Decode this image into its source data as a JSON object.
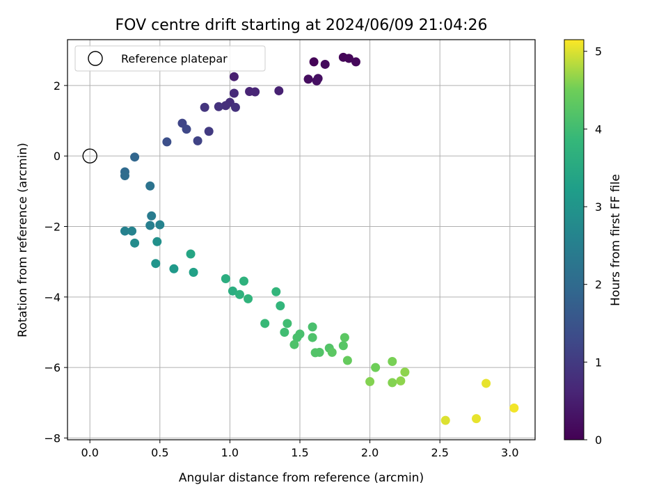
{
  "chart_data": {
    "type": "scatter",
    "title": "FOV centre drift starting at 2024/06/09 21:04:26",
    "xlabel": "Angular distance from reference (arcmin)",
    "ylabel": "Rotation from reference (arcmin)",
    "xlim": [
      -0.16,
      3.18
    ],
    "ylim": [
      -8.05,
      3.3
    ],
    "xticks": [
      "0.0",
      "0.5",
      "1.0",
      "1.5",
      "2.0",
      "2.5",
      "3.0"
    ],
    "xtick_values": [
      0,
      0.5,
      1,
      1.5,
      2,
      2.5,
      3
    ],
    "yticks": [
      "−8",
      "−6",
      "−4",
      "−2",
      "0",
      "2"
    ],
    "ytick_values": [
      -8,
      -6,
      -4,
      -2,
      0,
      2
    ],
    "grid": true,
    "legend_position": "top-left",
    "colormap": "viridis",
    "colorbar": {
      "label": "Hours from first FF file",
      "range": [
        0,
        5.15
      ],
      "ticks": [
        "0",
        "1",
        "2",
        "3",
        "4",
        "5"
      ],
      "tick_values": [
        0,
        1,
        2,
        3,
        4,
        5
      ]
    },
    "reference": {
      "name": "Reference platepar",
      "x": 0.0,
      "y": 0.0
    },
    "series": [
      {
        "name": "",
        "points": [
          {
            "x": 1.6,
            "y": 2.67,
            "h": 0.05
          },
          {
            "x": 1.81,
            "y": 2.8,
            "h": 0.08
          },
          {
            "x": 1.85,
            "y": 2.77,
            "h": 0.1
          },
          {
            "x": 1.9,
            "y": 2.67,
            "h": 0.12
          },
          {
            "x": 1.68,
            "y": 2.6,
            "h": 0.15
          },
          {
            "x": 1.56,
            "y": 2.18,
            "h": 0.2
          },
          {
            "x": 1.63,
            "y": 2.2,
            "h": 0.23
          },
          {
            "x": 1.62,
            "y": 2.13,
            "h": 0.25
          },
          {
            "x": 1.03,
            "y": 2.25,
            "h": 0.5
          },
          {
            "x": 1.35,
            "y": 1.85,
            "h": 0.55
          },
          {
            "x": 1.14,
            "y": 1.83,
            "h": 0.6
          },
          {
            "x": 1.18,
            "y": 1.82,
            "h": 0.62
          },
          {
            "x": 1.03,
            "y": 1.78,
            "h": 0.7
          },
          {
            "x": 1.0,
            "y": 1.52,
            "h": 0.75
          },
          {
            "x": 0.97,
            "y": 1.43,
            "h": 0.8
          },
          {
            "x": 0.92,
            "y": 1.4,
            "h": 0.85
          },
          {
            "x": 1.04,
            "y": 1.38,
            "h": 0.82
          },
          {
            "x": 0.82,
            "y": 1.38,
            "h": 0.9
          },
          {
            "x": 0.85,
            "y": 0.7,
            "h": 1.0
          },
          {
            "x": 0.66,
            "y": 0.93,
            "h": 1.2
          },
          {
            "x": 0.69,
            "y": 0.76,
            "h": 1.25
          },
          {
            "x": 0.77,
            "y": 0.43,
            "h": 1.15
          },
          {
            "x": 0.55,
            "y": 0.4,
            "h": 1.4
          },
          {
            "x": 0.32,
            "y": -0.03,
            "h": 1.9
          },
          {
            "x": 0.25,
            "y": -0.45,
            "h": 2.0
          },
          {
            "x": 0.25,
            "y": -0.56,
            "h": 2.05
          },
          {
            "x": 0.43,
            "y": -0.85,
            "h": 2.2
          },
          {
            "x": 0.44,
            "y": -1.7,
            "h": 2.4
          },
          {
            "x": 0.43,
            "y": -1.97,
            "h": 2.5
          },
          {
            "x": 0.5,
            "y": -1.95,
            "h": 2.6
          },
          {
            "x": 0.25,
            "y": -2.13,
            "h": 2.55
          },
          {
            "x": 0.3,
            "y": -2.13,
            "h": 2.6
          },
          {
            "x": 0.32,
            "y": -2.47,
            "h": 2.8
          },
          {
            "x": 0.48,
            "y": -2.43,
            "h": 2.9
          },
          {
            "x": 0.47,
            "y": -3.05,
            "h": 3.0
          },
          {
            "x": 0.6,
            "y": -3.2,
            "h": 3.1
          },
          {
            "x": 0.72,
            "y": -2.78,
            "h": 3.4
          },
          {
            "x": 0.74,
            "y": -3.3,
            "h": 3.3
          },
          {
            "x": 0.97,
            "y": -3.48,
            "h": 3.6
          },
          {
            "x": 1.1,
            "y": -3.55,
            "h": 3.7
          },
          {
            "x": 1.02,
            "y": -3.83,
            "h": 3.6
          },
          {
            "x": 1.07,
            "y": -3.93,
            "h": 3.7
          },
          {
            "x": 1.13,
            "y": -4.05,
            "h": 3.75
          },
          {
            "x": 1.33,
            "y": -3.85,
            "h": 3.8
          },
          {
            "x": 1.36,
            "y": -4.25,
            "h": 3.8
          },
          {
            "x": 1.25,
            "y": -4.75,
            "h": 3.9
          },
          {
            "x": 1.41,
            "y": -4.75,
            "h": 4.0
          },
          {
            "x": 1.39,
            "y": -5.0,
            "h": 4.0
          },
          {
            "x": 1.59,
            "y": -4.85,
            "h": 4.1
          },
          {
            "x": 1.5,
            "y": -5.05,
            "h": 4.1
          },
          {
            "x": 1.48,
            "y": -5.15,
            "h": 4.1
          },
          {
            "x": 1.59,
            "y": -5.15,
            "h": 4.15
          },
          {
            "x": 1.46,
            "y": -5.35,
            "h": 4.15
          },
          {
            "x": 1.82,
            "y": -5.15,
            "h": 4.3
          },
          {
            "x": 1.81,
            "y": -5.38,
            "h": 4.25
          },
          {
            "x": 1.71,
            "y": -5.45,
            "h": 4.2
          },
          {
            "x": 1.61,
            "y": -5.58,
            "h": 4.2
          },
          {
            "x": 1.64,
            "y": -5.57,
            "h": 4.2
          },
          {
            "x": 1.73,
            "y": -5.57,
            "h": 4.3
          },
          {
            "x": 1.84,
            "y": -5.8,
            "h": 4.4
          },
          {
            "x": 2.04,
            "y": -6.0,
            "h": 4.5
          },
          {
            "x": 2.16,
            "y": -5.83,
            "h": 4.55
          },
          {
            "x": 2.0,
            "y": -6.4,
            "h": 4.6
          },
          {
            "x": 2.16,
            "y": -6.43,
            "h": 4.6
          },
          {
            "x": 2.22,
            "y": -6.38,
            "h": 4.65
          },
          {
            "x": 2.25,
            "y": -6.13,
            "h": 4.65
          },
          {
            "x": 2.54,
            "y": -7.5,
            "h": 5.0
          },
          {
            "x": 2.76,
            "y": -7.45,
            "h": 5.05
          },
          {
            "x": 2.83,
            "y": -6.45,
            "h": 5.05
          },
          {
            "x": 3.03,
            "y": -7.15,
            "h": 5.1
          }
        ]
      }
    ]
  }
}
